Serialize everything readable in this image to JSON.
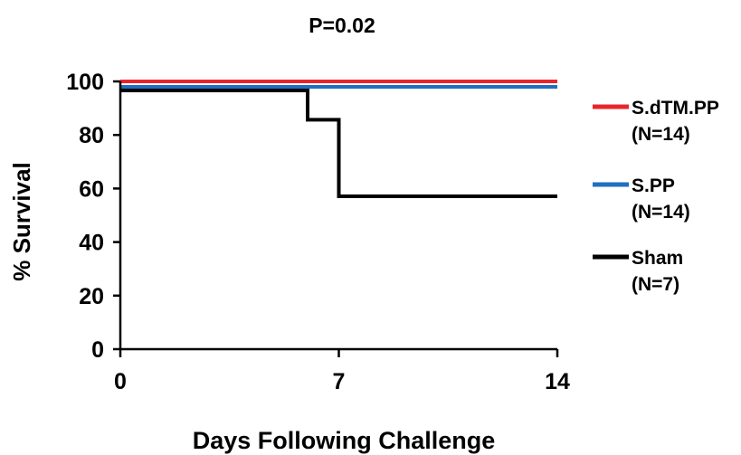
{
  "chart_data": {
    "type": "line",
    "subtype": "kaplan-meier step",
    "title": "P=0.02",
    "xlabel": "Days Following Challenge",
    "ylabel": "% Survival",
    "xlim": [
      0,
      14
    ],
    "ylim": [
      0,
      100
    ],
    "xticks": [
      "0",
      "7",
      "14"
    ],
    "yticks": [
      "0",
      "20",
      "40",
      "60",
      "80",
      "100"
    ],
    "grid": false,
    "legend_position": "right",
    "series": [
      {
        "name": "S.dTM.PP",
        "n_label": "(N=14)",
        "color": "#e8252c",
        "x": [
          0,
          14
        ],
        "y": [
          100,
          100
        ]
      },
      {
        "name": "S.PP",
        "n_label": "(N=14)",
        "color": "#1f6fbf",
        "x": [
          0,
          14
        ],
        "y": [
          100,
          100
        ]
      },
      {
        "name": "Sham",
        "n_label": "(N=7)",
        "color": "#000000",
        "x": [
          0,
          6,
          7,
          14
        ],
        "y": [
          100,
          85.7,
          57.1,
          57.1
        ]
      }
    ]
  }
}
